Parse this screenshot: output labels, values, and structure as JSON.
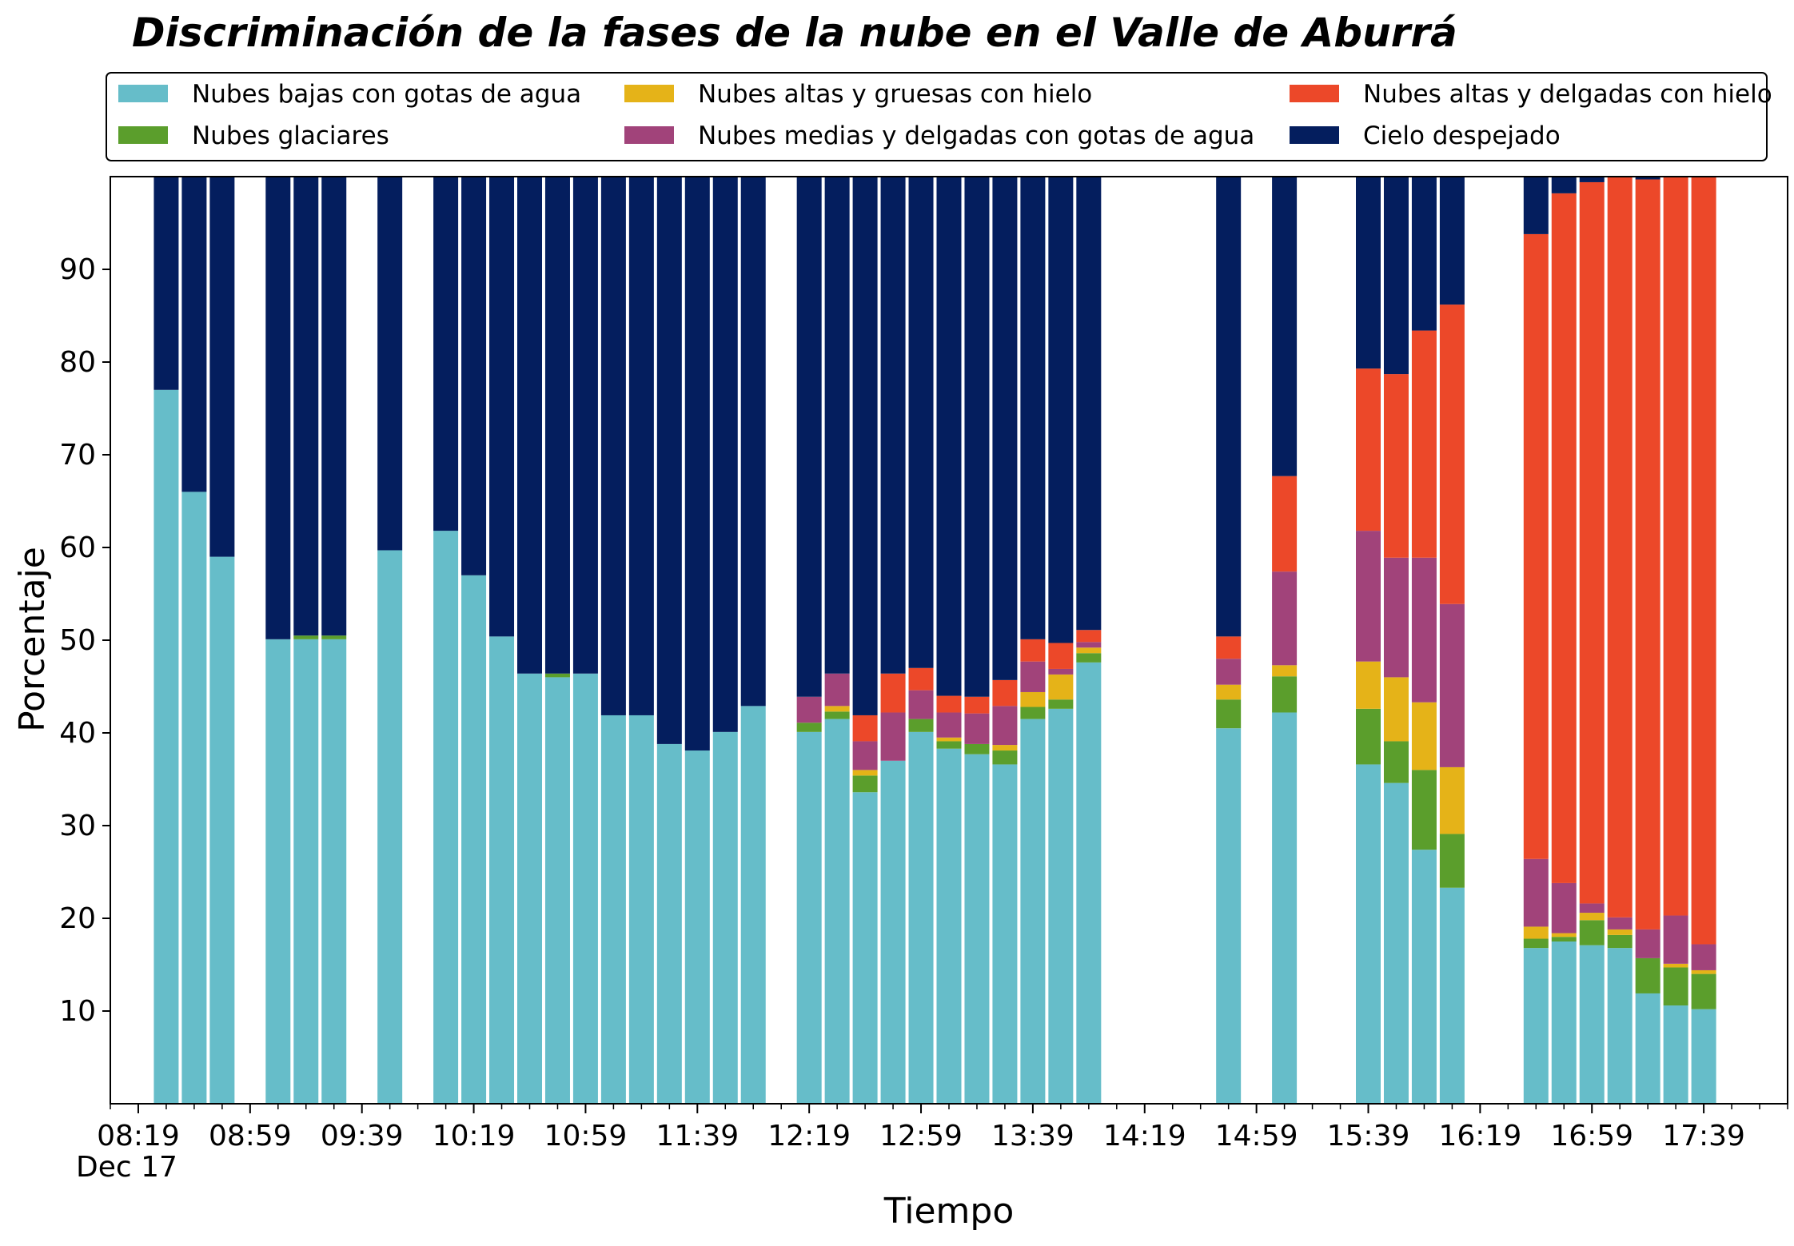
{
  "chart_data": {
    "type": "bar",
    "stacked": true,
    "title": "Discriminación de la fases de la nube en el Valle de Aburrá",
    "xlabel": "Tiempo",
    "ylabel": "Porcentaje",
    "xlim": [
      "08:09",
      "18:09"
    ],
    "ylim": [
      0,
      100
    ],
    "yticks": [
      10,
      20,
      30,
      40,
      50,
      60,
      70,
      80,
      90
    ],
    "xticks": [
      "08:19",
      "08:59",
      "09:39",
      "10:19",
      "10:59",
      "11:39",
      "12:19",
      "12:59",
      "13:39",
      "14:19",
      "14:59",
      "15:39",
      "16:19",
      "16:59",
      "17:39"
    ],
    "x_date_label": "Dec 17",
    "grid": false,
    "legend_position": "top",
    "legend_columns": 3,
    "series": [
      {
        "name": "Nubes bajas con gotas de agua",
        "color": "#66bdc9"
      },
      {
        "name": "Nubes glaciares",
        "color": "#5b9e2c"
      },
      {
        "name": "Nubes altas y gruesas con hielo",
        "color": "#e5b318"
      },
      {
        "name": "Nubes medias y delgadas con gotas de agua",
        "color": "#a1437a"
      },
      {
        "name": "Nubes altas y delgadas con hielo",
        "color": "#ec4829"
      },
      {
        "name": "Cielo despejado",
        "color": "#041e5e"
      }
    ],
    "bars": [
      {
        "time": "08:29",
        "values": [
          77.0,
          0,
          0,
          0,
          0,
          23.0
        ]
      },
      {
        "time": "08:39",
        "values": [
          66.0,
          0,
          0,
          0,
          0,
          34.0
        ]
      },
      {
        "time": "08:49",
        "values": [
          59.0,
          0,
          0,
          0,
          0,
          41.0
        ]
      },
      {
        "time": "09:09",
        "values": [
          50.1,
          0,
          0,
          0,
          0,
          49.9
        ]
      },
      {
        "time": "09:19",
        "values": [
          50.1,
          0.4,
          0,
          0,
          0,
          49.5
        ]
      },
      {
        "time": "09:29",
        "values": [
          50.1,
          0.4,
          0,
          0,
          0,
          49.5
        ]
      },
      {
        "time": "09:49",
        "values": [
          59.7,
          0,
          0,
          0,
          0,
          40.3
        ]
      },
      {
        "time": "10:09",
        "values": [
          61.8,
          0,
          0,
          0,
          0,
          38.2
        ]
      },
      {
        "time": "10:19",
        "values": [
          57.0,
          0,
          0,
          0,
          0,
          43.0
        ]
      },
      {
        "time": "10:29",
        "values": [
          50.4,
          0,
          0,
          0,
          0,
          49.6
        ]
      },
      {
        "time": "10:39",
        "values": [
          46.4,
          0,
          0,
          0,
          0,
          53.6
        ]
      },
      {
        "time": "10:49",
        "values": [
          46.0,
          0.4,
          0,
          0,
          0,
          53.6
        ]
      },
      {
        "time": "10:59",
        "values": [
          46.4,
          0,
          0,
          0,
          0,
          53.6
        ]
      },
      {
        "time": "11:09",
        "values": [
          41.9,
          0,
          0,
          0,
          0,
          58.1
        ]
      },
      {
        "time": "11:19",
        "values": [
          41.9,
          0,
          0,
          0,
          0,
          58.1
        ]
      },
      {
        "time": "11:29",
        "values": [
          38.8,
          0,
          0,
          0,
          0,
          61.2
        ]
      },
      {
        "time": "11:39",
        "values": [
          38.1,
          0,
          0,
          0,
          0,
          61.9
        ]
      },
      {
        "time": "11:49",
        "values": [
          40.1,
          0,
          0,
          0,
          0,
          59.9
        ]
      },
      {
        "time": "11:59",
        "values": [
          42.9,
          0,
          0,
          0,
          0,
          57.1
        ]
      },
      {
        "time": "12:19",
        "values": [
          40.1,
          1.0,
          0,
          2.8,
          0,
          56.1
        ]
      },
      {
        "time": "12:29",
        "values": [
          41.5,
          0.8,
          0.6,
          3.5,
          0,
          53.6
        ]
      },
      {
        "time": "12:39",
        "values": [
          33.6,
          1.8,
          0.6,
          3.1,
          2.8,
          58.1
        ]
      },
      {
        "time": "12:49",
        "values": [
          37.0,
          0,
          0,
          5.2,
          4.2,
          53.6
        ]
      },
      {
        "time": "12:59",
        "values": [
          40.1,
          1.4,
          0,
          3.1,
          2.4,
          53.0
        ]
      },
      {
        "time": "13:09",
        "values": [
          38.3,
          0.8,
          0.4,
          2.7,
          1.8,
          56.0
        ]
      },
      {
        "time": "13:19",
        "values": [
          37.7,
          1.1,
          0,
          3.3,
          1.8,
          56.1
        ]
      },
      {
        "time": "13:29",
        "values": [
          36.6,
          1.5,
          0.6,
          4.2,
          2.8,
          54.3
        ]
      },
      {
        "time": "13:39",
        "values": [
          41.5,
          1.3,
          1.6,
          3.3,
          2.4,
          49.9
        ]
      },
      {
        "time": "13:49",
        "values": [
          42.6,
          1.0,
          2.7,
          0.6,
          2.8,
          50.3
        ]
      },
      {
        "time": "13:59",
        "values": [
          47.6,
          1.0,
          0.6,
          0.6,
          1.3,
          48.9
        ]
      },
      {
        "time": "14:49",
        "values": [
          40.5,
          3.1,
          1.6,
          2.8,
          2.4,
          49.6
        ]
      },
      {
        "time": "15:09",
        "values": [
          42.2,
          3.9,
          1.2,
          10.1,
          10.3,
          32.3
        ]
      },
      {
        "time": "15:39",
        "values": [
          36.6,
          6.0,
          5.1,
          14.1,
          17.5,
          20.7
        ]
      },
      {
        "time": "15:49",
        "values": [
          34.6,
          4.5,
          6.9,
          12.9,
          19.8,
          21.3
        ]
      },
      {
        "time": "15:59",
        "values": [
          27.4,
          8.6,
          7.3,
          15.6,
          24.5,
          16.6
        ]
      },
      {
        "time": "16:09",
        "values": [
          23.3,
          5.8,
          7.2,
          17.6,
          32.3,
          13.8
        ]
      },
      {
        "time": "16:39",
        "values": [
          16.8,
          1.0,
          1.3,
          7.3,
          67.4,
          6.2
        ]
      },
      {
        "time": "16:49",
        "values": [
          17.5,
          0.5,
          0.4,
          5.4,
          74.4,
          1.8
        ]
      },
      {
        "time": "16:59",
        "values": [
          17.1,
          2.7,
          0.8,
          1.0,
          77.8,
          0.6
        ]
      },
      {
        "time": "17:09",
        "values": [
          16.8,
          1.4,
          0.6,
          1.3,
          79.9,
          0
        ]
      },
      {
        "time": "17:19",
        "values": [
          11.9,
          3.8,
          0,
          3.1,
          80.9,
          0.3
        ]
      },
      {
        "time": "17:29",
        "values": [
          10.6,
          4.1,
          0.4,
          5.2,
          79.7,
          0
        ]
      },
      {
        "time": "17:39",
        "values": [
          10.2,
          3.8,
          0.4,
          2.8,
          82.8,
          0
        ]
      }
    ]
  }
}
